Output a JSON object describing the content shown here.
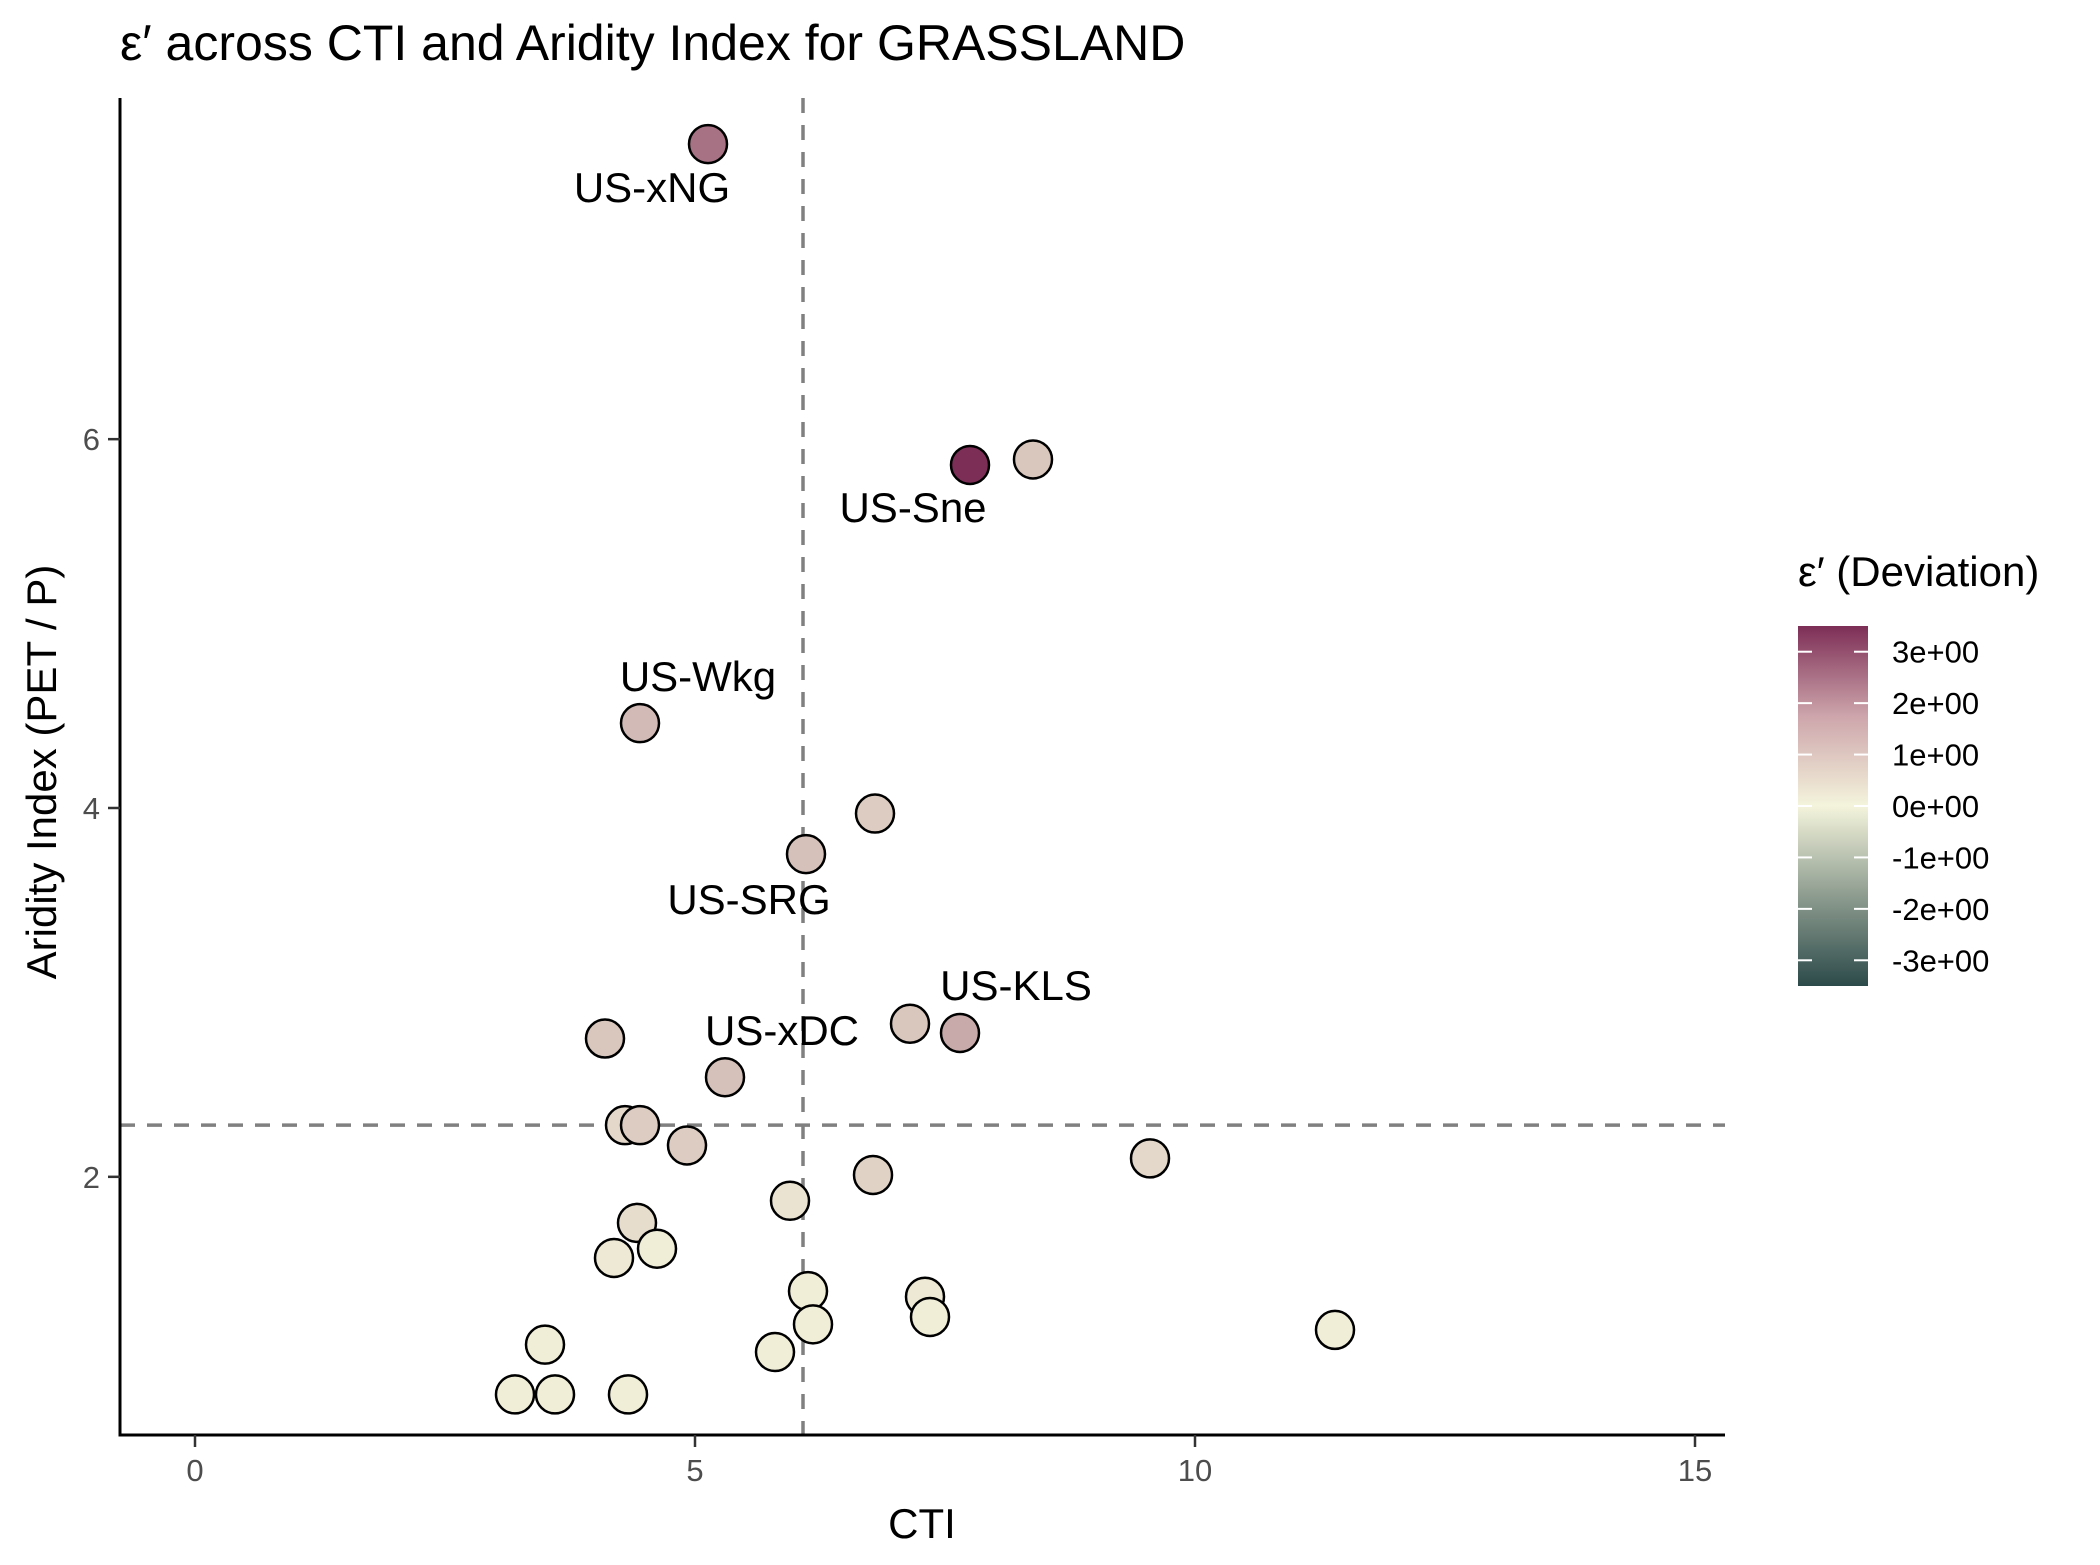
{
  "chart_data": {
    "type": "scatter",
    "title": "ε′ across CTI and Aridity Index for GRASSLAND",
    "xlabel": "CTI",
    "ylabel": "Aridity Index (PET / P)",
    "xlim": [
      -0.75,
      15.3
    ],
    "ylim": [
      0.6,
      7.85
    ],
    "xticks": [
      0,
      5,
      10,
      15
    ],
    "yticks": [
      2,
      4,
      6
    ],
    "grid": false,
    "reference_lines": {
      "x": 6.08,
      "y": 2.28
    },
    "color_scale": {
      "title": "ε′ (Deviation)",
      "min": -3.5,
      "max": 3.5,
      "ticks": [
        {
          "value": 3,
          "label": "3e+00"
        },
        {
          "value": 2,
          "label": "2e+00"
        },
        {
          "value": 1,
          "label": "1e+00"
        },
        {
          "value": 0,
          "label": "0e+00"
        },
        {
          "value": -1,
          "label": "-1e+00"
        },
        {
          "value": -2,
          "label": "-2e+00"
        },
        {
          "value": -3,
          "label": "-3e+00"
        }
      ],
      "colors": {
        "high": "#7d2e56",
        "mid": "#f4f4dc",
        "low": "#2c4a4a"
      }
    },
    "legend_position": "right",
    "points": [
      {
        "x": 5.13,
        "y": 7.6,
        "value": 2.3,
        "label": "US-xNG"
      },
      {
        "x": 7.75,
        "y": 5.86,
        "value": 3.5,
        "label": "US-Sne"
      },
      {
        "x": 8.38,
        "y": 5.89,
        "value": 0.8
      },
      {
        "x": 4.45,
        "y": 4.46,
        "value": 1.0,
        "label": "US-Wkg"
      },
      {
        "x": 6.8,
        "y": 3.97,
        "value": 0.7
      },
      {
        "x": 6.11,
        "y": 3.75,
        "value": 0.9,
        "label": "US-SRG"
      },
      {
        "x": 7.15,
        "y": 2.83,
        "value": 0.8
      },
      {
        "x": 7.65,
        "y": 2.78,
        "value": 1.3,
        "label": "US-KLS"
      },
      {
        "x": 4.1,
        "y": 2.75,
        "value": 0.8
      },
      {
        "x": 5.3,
        "y": 2.54,
        "value": 0.9,
        "label": "US-xDC"
      },
      {
        "x": 4.3,
        "y": 2.28,
        "value": 0.5
      },
      {
        "x": 4.45,
        "y": 2.28,
        "value": 0.7
      },
      {
        "x": 4.92,
        "y": 2.17,
        "value": 0.7
      },
      {
        "x": 9.55,
        "y": 2.1,
        "value": 0.5
      },
      {
        "x": 6.78,
        "y": 2.01,
        "value": 0.6
      },
      {
        "x": 5.95,
        "y": 1.87,
        "value": 0.3
      },
      {
        "x": 4.42,
        "y": 1.75,
        "value": 0.4
      },
      {
        "x": 4.62,
        "y": 1.61,
        "value": 0.1
      },
      {
        "x": 4.19,
        "y": 1.56,
        "value": 0.2
      },
      {
        "x": 6.13,
        "y": 1.38,
        "value": 0.1
      },
      {
        "x": 7.3,
        "y": 1.35,
        "value": 0.2
      },
      {
        "x": 7.35,
        "y": 1.24,
        "value": 0.1
      },
      {
        "x": 6.18,
        "y": 1.2,
        "value": 0.1
      },
      {
        "x": 11.4,
        "y": 1.17,
        "value": 0.1
      },
      {
        "x": 3.5,
        "y": 1.09,
        "value": 0.1
      },
      {
        "x": 5.8,
        "y": 1.05,
        "value": 0.1
      },
      {
        "x": 3.2,
        "y": 0.82,
        "value": 0.1
      },
      {
        "x": 3.6,
        "y": 0.82,
        "value": 0.1
      },
      {
        "x": 4.33,
        "y": 0.82,
        "value": 0.1
      }
    ]
  }
}
